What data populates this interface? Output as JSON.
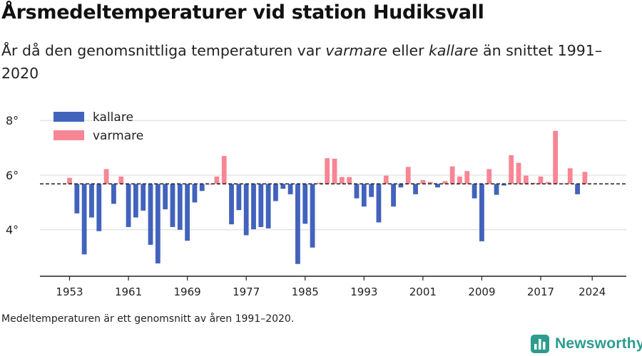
{
  "title": "Årsmedeltemperaturer vid station Hudiksvall",
  "subtitle": {
    "part1": "År då den genomsnittliga temperaturen var ",
    "em1": "varmare",
    "part2": " eller ",
    "em2": "kallare",
    "part3": " än snittet 1991–2020"
  },
  "note": "Medeltemperaturen är ett genomsnitt av åren 1991–2020.",
  "brand": "Newsworthy",
  "colors": {
    "kallare": "#4263bc",
    "varmare": "#f78694",
    "brand": "#2c9c8e"
  },
  "chart_data": {
    "type": "bar",
    "baseline": 5.68,
    "ylim": [
      2.3,
      8.5
    ],
    "yticks": [
      4,
      6,
      8
    ],
    "ytick_labels": [
      "4°",
      "6°",
      "8°"
    ],
    "xticks": [
      1953,
      1961,
      1969,
      1977,
      1985,
      1993,
      2001,
      2009,
      2017,
      2024
    ],
    "grid": true,
    "legend_position": "top-left",
    "legend": [
      {
        "key": "kallare",
        "label": "kallare"
      },
      {
        "key": "varmare",
        "label": "varmare"
      }
    ],
    "series": [
      {
        "year": 1953,
        "value": 5.9
      },
      {
        "year": 1954,
        "value": 4.6
      },
      {
        "year": 1955,
        "value": 3.1
      },
      {
        "year": 1956,
        "value": 4.45
      },
      {
        "year": 1957,
        "value": 3.95
      },
      {
        "year": 1958,
        "value": 6.22
      },
      {
        "year": 1959,
        "value": 4.95
      },
      {
        "year": 1960,
        "value": 5.95
      },
      {
        "year": 1961,
        "value": 4.1
      },
      {
        "year": 1962,
        "value": 4.45
      },
      {
        "year": 1963,
        "value": 4.7
      },
      {
        "year": 1964,
        "value": 3.45
      },
      {
        "year": 1965,
        "value": 2.77
      },
      {
        "year": 1966,
        "value": 4.75
      },
      {
        "year": 1967,
        "value": 4.1
      },
      {
        "year": 1968,
        "value": 4.0
      },
      {
        "year": 1969,
        "value": 3.6
      },
      {
        "year": 1970,
        "value": 5.0
      },
      {
        "year": 1971,
        "value": 5.42
      },
      {
        "year": 1972,
        "value": 5.68
      },
      {
        "year": 1973,
        "value": 5.95
      },
      {
        "year": 1974,
        "value": 6.7
      },
      {
        "year": 1975,
        "value": 4.2
      },
      {
        "year": 1976,
        "value": 4.72
      },
      {
        "year": 1977,
        "value": 3.8
      },
      {
        "year": 1978,
        "value": 4.02
      },
      {
        "year": 1979,
        "value": 4.1
      },
      {
        "year": 1980,
        "value": 4.05
      },
      {
        "year": 1981,
        "value": 5.05
      },
      {
        "year": 1982,
        "value": 5.5
      },
      {
        "year": 1983,
        "value": 5.3
      },
      {
        "year": 1984,
        "value": 2.75
      },
      {
        "year": 1985,
        "value": 4.22
      },
      {
        "year": 1986,
        "value": 3.35
      },
      {
        "year": 1987,
        "value": 5.72
      },
      {
        "year": 1988,
        "value": 6.62
      },
      {
        "year": 1989,
        "value": 6.6
      },
      {
        "year": 1990,
        "value": 5.93
      },
      {
        "year": 1991,
        "value": 5.93
      },
      {
        "year": 1992,
        "value": 5.15
      },
      {
        "year": 1993,
        "value": 4.85
      },
      {
        "year": 1994,
        "value": 5.2
      },
      {
        "year": 1995,
        "value": 4.27
      },
      {
        "year": 1996,
        "value": 5.98
      },
      {
        "year": 1997,
        "value": 4.85
      },
      {
        "year": 1998,
        "value": 5.55
      },
      {
        "year": 1999,
        "value": 6.3
      },
      {
        "year": 2000,
        "value": 5.3
      },
      {
        "year": 2001,
        "value": 5.82
      },
      {
        "year": 2002,
        "value": 5.75
      },
      {
        "year": 2003,
        "value": 5.55
      },
      {
        "year": 2004,
        "value": 5.78
      },
      {
        "year": 2005,
        "value": 6.32
      },
      {
        "year": 2006,
        "value": 5.95
      },
      {
        "year": 2007,
        "value": 6.15
      },
      {
        "year": 2008,
        "value": 5.15
      },
      {
        "year": 2009,
        "value": 3.58
      },
      {
        "year": 2010,
        "value": 6.22
      },
      {
        "year": 2011,
        "value": 5.28
      },
      {
        "year": 2012,
        "value": 5.62
      },
      {
        "year": 2013,
        "value": 6.73
      },
      {
        "year": 2014,
        "value": 6.45
      },
      {
        "year": 2015,
        "value": 5.98
      },
      {
        "year": 2016,
        "value": 5.72
      },
      {
        "year": 2017,
        "value": 5.95
      },
      {
        "year": 2018,
        "value": 5.75
      },
      {
        "year": 2019,
        "value": 7.62
      },
      {
        "year": 2020,
        "value": 5.7
      },
      {
        "year": 2021,
        "value": 6.25
      },
      {
        "year": 2022,
        "value": 5.3
      },
      {
        "year": 2023,
        "value": 6.12
      }
    ]
  }
}
